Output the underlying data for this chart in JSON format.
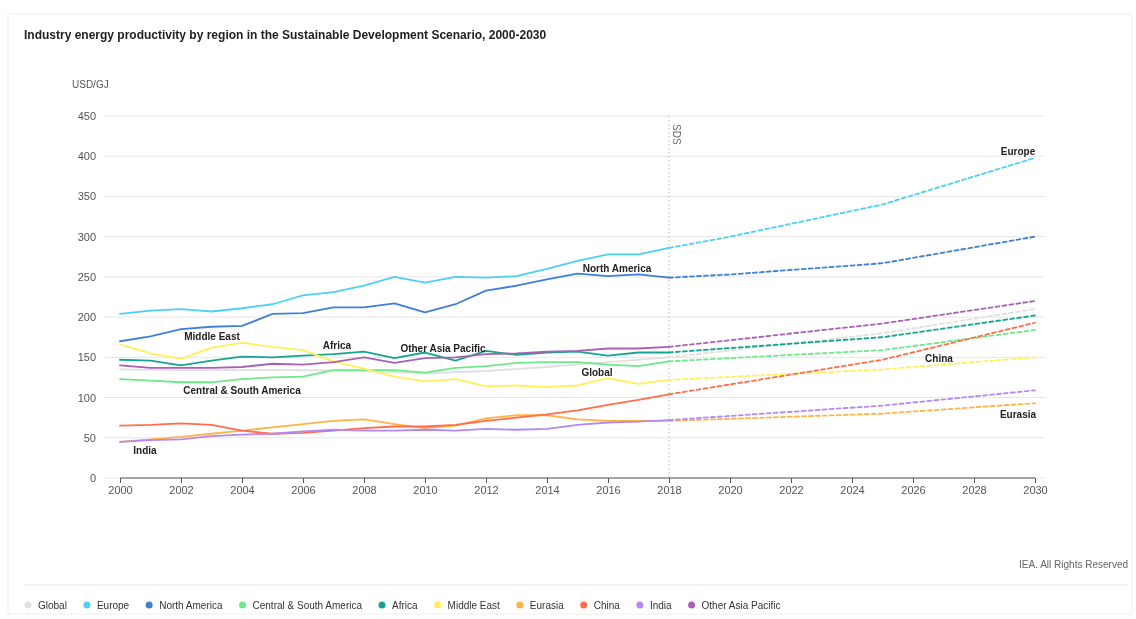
{
  "chart_data": {
    "type": "line",
    "title": "Industry energy productivity by region in the Sustainable Development Scenario, 2000-2030",
    "ylabel": "USD/GJ",
    "xlim": [
      2000,
      2030
    ],
    "xticks": [
      2000,
      2002,
      2004,
      2006,
      2008,
      2010,
      2012,
      2014,
      2016,
      2018,
      2020,
      2022,
      2024,
      2026,
      2028,
      2030
    ],
    "ylim": [
      0,
      450
    ],
    "yticks": [
      0,
      50,
      100,
      150,
      200,
      250,
      300,
      350,
      400,
      450
    ],
    "grid": "y",
    "legend": "bottom",
    "marker": "none",
    "ref_lines": [
      {
        "axis": "x",
        "value": 2018,
        "label": "SDS",
        "color": "#bbbbbb",
        "line_style": "dotted"
      }
    ],
    "series": [
      {
        "name": "Global",
        "color": "#e0e0e0",
        "x": [
          2000,
          2002,
          2004,
          2006,
          2008,
          2010,
          2012,
          2014,
          2016,
          2018
        ],
        "values": [
          135,
          134,
          134,
          134,
          133,
          130,
          133,
          138,
          144,
          150
        ]
      },
      {
        "color": "#e0e0e0",
        "line_style": "dashed",
        "x": [
          2018,
          2025,
          2030
        ],
        "values": [
          150,
          180,
          210
        ]
      },
      {
        "name": "Europe",
        "color": "#4dd0f7",
        "x": [
          2000,
          2001,
          2002,
          2003,
          2004,
          2005,
          2006,
          2007,
          2008,
          2009,
          2010,
          2011,
          2012,
          2013,
          2014,
          2015,
          2016,
          2017,
          2018
        ],
        "values": [
          204,
          208,
          210,
          207,
          211,
          216,
          227,
          231,
          239,
          250,
          243,
          250,
          249,
          251,
          260,
          270,
          278,
          278,
          286
        ]
      },
      {
        "color": "#4dd0f7",
        "line_style": "dashed",
        "x": [
          2018,
          2020,
          2025,
          2030
        ],
        "values": [
          286,
          300,
          340,
          398
        ]
      },
      {
        "name": "North America",
        "color": "#3f7fd9",
        "x": [
          2000,
          2001,
          2002,
          2003,
          2004,
          2005,
          2006,
          2007,
          2008,
          2009,
          2010,
          2011,
          2012,
          2013,
          2014,
          2015,
          2016,
          2017,
          2018
        ],
        "values": [
          170,
          176,
          185,
          188,
          189,
          204,
          205,
          212,
          212,
          217,
          206,
          216,
          233,
          239,
          247,
          254,
          251,
          253,
          249
        ]
      },
      {
        "color": "#3f7fd9",
        "line_style": "dashed",
        "x": [
          2018,
          2020,
          2025,
          2030
        ],
        "values": [
          249,
          253,
          267,
          300
        ]
      },
      {
        "name": "Central & South America",
        "color": "#6ee88a",
        "x": [
          2000,
          2001,
          2002,
          2003,
          2004,
          2005,
          2006,
          2007,
          2008,
          2009,
          2010,
          2011,
          2012,
          2013,
          2014,
          2015,
          2016,
          2017,
          2018
        ],
        "values": [
          123,
          121,
          119,
          119,
          123,
          125,
          126,
          134,
          134,
          134,
          131,
          137,
          139,
          143,
          144,
          144,
          141,
          139,
          145
        ]
      },
      {
        "color": "#6ee88a",
        "line_style": "dashed",
        "x": [
          2018,
          2025,
          2030
        ],
        "values": [
          145,
          159,
          184
        ]
      },
      {
        "name": "Africa",
        "color": "#15a58f",
        "x": [
          2000,
          2001,
          2002,
          2003,
          2004,
          2005,
          2006,
          2007,
          2008,
          2009,
          2010,
          2011,
          2012,
          2013,
          2014,
          2015,
          2016,
          2017,
          2018
        ],
        "values": [
          147,
          146,
          140,
          146,
          151,
          150,
          152,
          154,
          157,
          149,
          156,
          146,
          158,
          153,
          156,
          157,
          152,
          156,
          156
        ]
      },
      {
        "color": "#15a58f",
        "line_style": "dashed",
        "x": [
          2018,
          2025,
          2030
        ],
        "values": [
          156,
          175,
          202
        ]
      },
      {
        "name": "Middle East",
        "color": "#fff05a",
        "x": [
          2000,
          2001,
          2002,
          2003,
          2004,
          2005,
          2006,
          2007,
          2008,
          2009,
          2010,
          2011,
          2012,
          2013,
          2014,
          2015,
          2016,
          2017,
          2018
        ],
        "values": [
          166,
          155,
          148,
          162,
          168,
          163,
          159,
          145,
          136,
          126,
          120,
          123,
          114,
          115,
          113,
          115,
          124,
          117,
          122
        ]
      },
      {
        "color": "#fff05a",
        "line_style": "dashed",
        "x": [
          2018,
          2025,
          2030
        ],
        "values": [
          122,
          135,
          150
        ]
      },
      {
        "name": "Eurasia",
        "color": "#ffb347",
        "x": [
          2000,
          2001,
          2002,
          2003,
          2004,
          2005,
          2006,
          2007,
          2008,
          2009,
          2010,
          2011,
          2012,
          2013,
          2014,
          2015,
          2016,
          2017,
          2018
        ],
        "values": [
          45,
          48,
          51,
          55,
          59,
          63,
          67,
          71,
          73,
          67,
          62,
          65,
          74,
          78,
          78,
          73,
          71,
          71,
          71
        ]
      },
      {
        "color": "#ffb347",
        "line_style": "dashed",
        "x": [
          2018,
          2025,
          2030
        ],
        "values": [
          71,
          80,
          93
        ]
      },
      {
        "name": "China",
        "color": "#ff6d4a",
        "x": [
          2000,
          2001,
          2002,
          2003,
          2004,
          2005,
          2006,
          2007,
          2008,
          2009,
          2010,
          2011,
          2012,
          2013,
          2014,
          2015,
          2016,
          2017,
          2018
        ],
        "values": [
          65,
          66,
          68,
          66,
          59,
          55,
          56,
          59,
          62,
          64,
          64,
          66,
          71,
          75,
          79,
          84,
          91,
          97,
          104
        ]
      },
      {
        "color": "#ff6d4a",
        "line_style": "dashed",
        "x": [
          2018,
          2025,
          2030
        ],
        "values": [
          104,
          147,
          193
        ]
      },
      {
        "name": "India",
        "color": "#b388f5",
        "x": [
          2000,
          2001,
          2002,
          2003,
          2004,
          2005,
          2006,
          2007,
          2008,
          2009,
          2010,
          2011,
          2012,
          2013,
          2014,
          2015,
          2016,
          2017,
          2018
        ],
        "values": [
          45,
          47,
          48,
          52,
          54,
          55,
          58,
          60,
          59,
          59,
          60,
          59,
          61,
          60,
          61,
          66,
          69,
          70,
          72
        ]
      },
      {
        "color": "#b388f5",
        "line_style": "dashed",
        "x": [
          2018,
          2025,
          2030
        ],
        "values": [
          72,
          90,
          109
        ]
      },
      {
        "name": "Other Asia Pacific",
        "color": "#a861b3",
        "x": [
          2000,
          2001,
          2002,
          2003,
          2004,
          2005,
          2006,
          2007,
          2008,
          2009,
          2010,
          2011,
          2012,
          2013,
          2014,
          2015,
          2016,
          2017,
          2018
        ],
        "values": [
          140,
          137,
          137,
          137,
          138,
          142,
          141,
          144,
          150,
          143,
          149,
          150,
          154,
          155,
          157,
          158,
          161,
          161,
          163
        ]
      },
      {
        "color": "#a861b3",
        "line_style": "dashed",
        "x": [
          2018,
          2025,
          2030
        ],
        "values": [
          163,
          192,
          220
        ]
      }
    ],
    "annotations": [
      "Europe",
      "North America",
      "Middle East",
      "Africa",
      "Other Asia Pacific",
      "Global",
      "Central & South America",
      "India",
      "China",
      "Eurasia",
      "IEA. All Rights Reserved"
    ]
  }
}
